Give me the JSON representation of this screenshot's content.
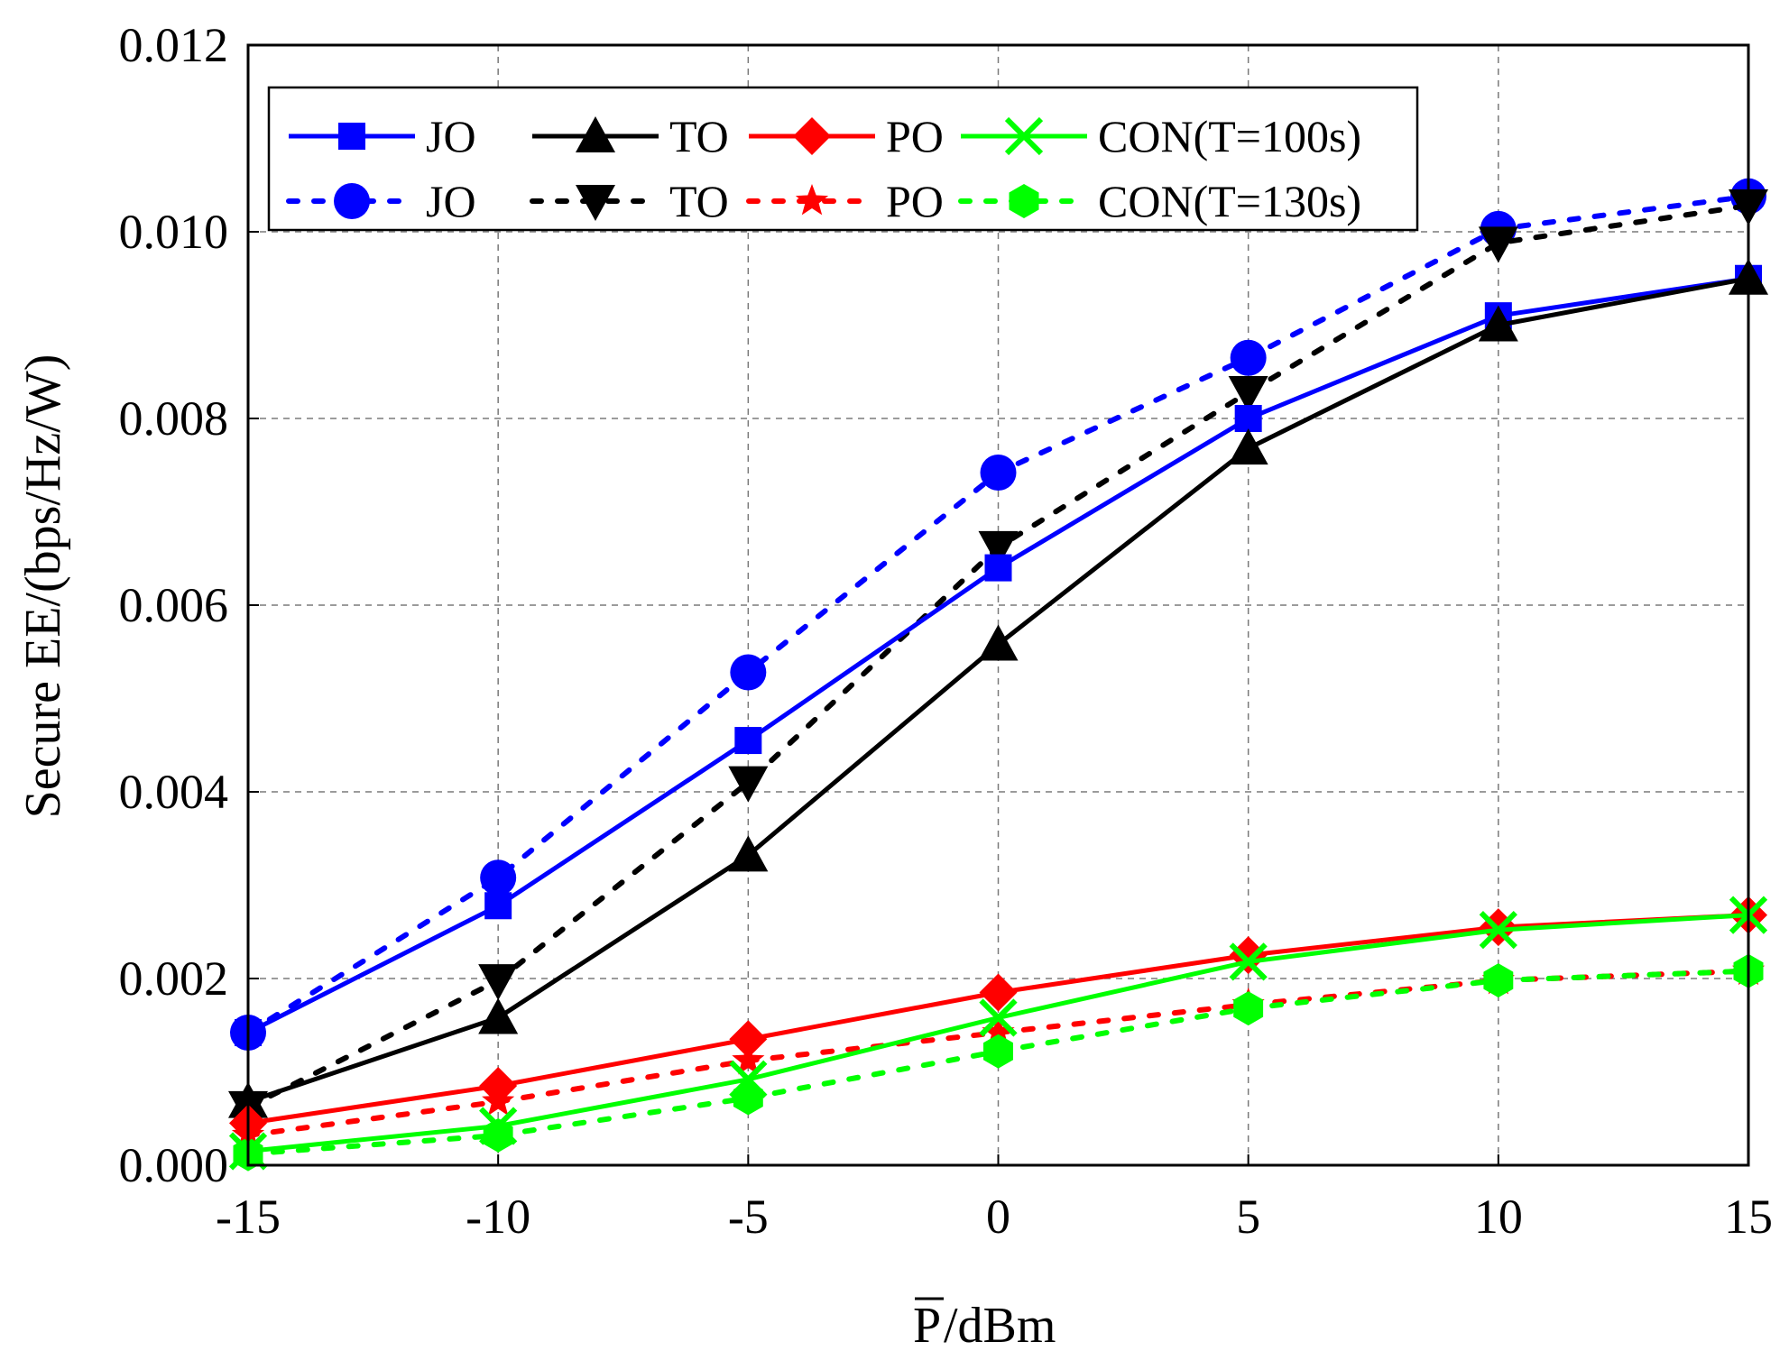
{
  "chart_data": {
    "type": "line",
    "title": "",
    "xlabel_bar": "P",
    "xlabel_unit": "/dBm",
    "ylabel": "Secure EE/(bps/Hz/W)",
    "x": [
      -15,
      -10,
      -5,
      0,
      5,
      10,
      15
    ],
    "xticks": [
      "-15",
      "-10",
      "-5",
      "0",
      "5",
      "10",
      "15"
    ],
    "yticks": [
      "0.000",
      "0.002",
      "0.004",
      "0.006",
      "0.008",
      "0.010",
      "0.012"
    ],
    "xlim": [
      -15,
      15
    ],
    "ylim": [
      0,
      0.012
    ],
    "grid": true,
    "legend_position": "top-left",
    "series": [
      {
        "name": "JO",
        "group": "T=100s",
        "color": "#0000ff",
        "style": "solid",
        "marker": "square",
        "values": [
          0.00142,
          0.00278,
          0.00455,
          0.0064,
          0.008,
          0.0091,
          0.0095
        ]
      },
      {
        "name": "TO",
        "group": "T=100s",
        "color": "#000000",
        "style": "solid",
        "marker": "triangle-up",
        "values": [
          0.00068,
          0.00158,
          0.00332,
          0.00558,
          0.00768,
          0.009,
          0.0095
        ]
      },
      {
        "name": "PO",
        "group": "T=100s",
        "color": "#ff0000",
        "style": "solid",
        "marker": "diamond",
        "values": [
          0.00045,
          0.00085,
          0.00135,
          0.00185,
          0.00225,
          0.00255,
          0.00268
        ]
      },
      {
        "name": "CON(T=100s)",
        "group": "T=100s",
        "color": "#00ff00",
        "style": "solid",
        "marker": "x",
        "values": [
          0.00015,
          0.00042,
          0.00092,
          0.00158,
          0.00218,
          0.00252,
          0.00268
        ]
      },
      {
        "name": "JO",
        "group": "T=130s",
        "color": "#0000ff",
        "style": "dotted",
        "marker": "circle",
        "values": [
          0.00142,
          0.00308,
          0.00528,
          0.00742,
          0.00865,
          0.01003,
          0.01038
        ]
      },
      {
        "name": "TO",
        "group": "T=130s",
        "color": "#000000",
        "style": "dotted",
        "marker": "triangle-down",
        "values": [
          0.00062,
          0.00198,
          0.0041,
          0.00662,
          0.00828,
          0.00988,
          0.01028
        ]
      },
      {
        "name": "PO",
        "group": "T=130s",
        "color": "#ff0000",
        "style": "dotted",
        "marker": "star",
        "values": [
          0.00032,
          0.00068,
          0.00112,
          0.00142,
          0.00172,
          0.00198,
          0.00208
        ]
      },
      {
        "name": "CON(T=130s)",
        "group": "T=130s",
        "color": "#00ff00",
        "style": "dotted",
        "marker": "hexagon",
        "values": [
          0.00012,
          0.00032,
          0.00072,
          0.00122,
          0.00168,
          0.00198,
          0.00208
        ]
      }
    ]
  }
}
